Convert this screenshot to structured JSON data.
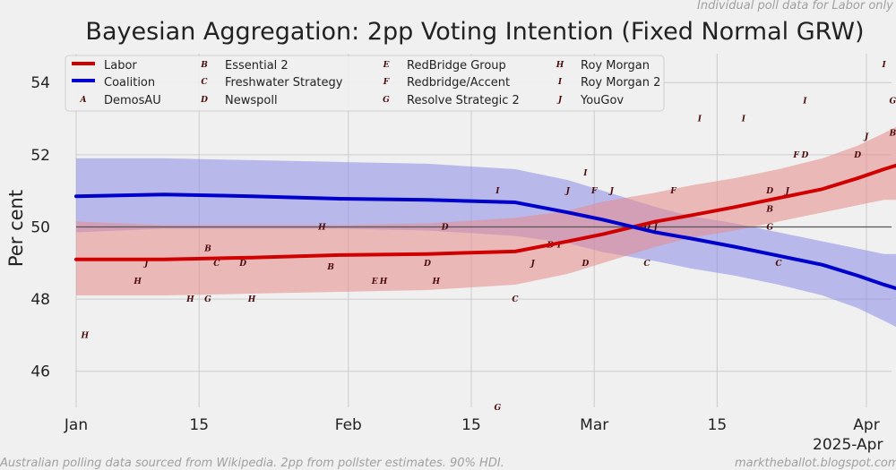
{
  "chart_data": {
    "type": "line",
    "title": "Bayesian Aggregation: 2pp Voting Intention (Fixed Normal GRW)",
    "top_note": "Individual poll data for Labor only",
    "ylabel": "Per cent",
    "xlabel": "2025-Apr",
    "footnote_left": "Australian polling data sourced from Wikipedia. 2pp from pollster estimates. 90% HDI.",
    "footnote_right": "marktheballot.blogspot.com",
    "reference_line": 50,
    "xlim": [
      0,
      96
    ],
    "ylim": [
      45,
      54.8
    ],
    "grid": true,
    "x_ticks": [
      {
        "day": 0,
        "label": "Jan"
      },
      {
        "day": 14,
        "label": "15"
      },
      {
        "day": 31,
        "label": "Feb"
      },
      {
        "day": 45,
        "label": "15"
      },
      {
        "day": 59,
        "label": "Mar"
      },
      {
        "day": 73,
        "label": "15"
      },
      {
        "day": 90,
        "label": "Apr"
      }
    ],
    "y_ticks": [
      46,
      48,
      50,
      52,
      54
    ],
    "colors": {
      "labor": "#d00000",
      "coalition": "#0000cc",
      "labor_band": "#e88a8a",
      "coalition_band": "#8a8ae8",
      "reference": "#555555"
    },
    "series": [
      {
        "name": "Labor",
        "end_label": "51.8",
        "x": [
          0,
          10,
          20,
          30,
          40,
          50,
          56,
          60,
          66,
          70,
          75,
          80,
          85,
          89,
          92,
          94
        ],
        "values": [
          49.1,
          49.1,
          49.15,
          49.22,
          49.25,
          49.32,
          49.6,
          49.8,
          50.15,
          50.32,
          50.55,
          50.8,
          51.05,
          51.35,
          51.6,
          51.75
        ],
        "band_lo": [
          48.1,
          48.1,
          48.15,
          48.2,
          48.25,
          48.4,
          48.7,
          49.0,
          49.45,
          49.7,
          49.9,
          50.15,
          50.4,
          50.6,
          50.75,
          50.75
        ],
        "band_hi": [
          50.15,
          50.05,
          50.05,
          50.05,
          50.1,
          50.25,
          50.45,
          50.7,
          50.95,
          51.15,
          51.35,
          51.6,
          51.9,
          52.25,
          52.6,
          52.85
        ]
      },
      {
        "name": "Coalition",
        "end_label": "48.2",
        "x": [
          0,
          10,
          20,
          30,
          40,
          50,
          56,
          60,
          66,
          70,
          75,
          80,
          85,
          89,
          92,
          94
        ],
        "values": [
          50.85,
          50.9,
          50.85,
          50.78,
          50.75,
          50.68,
          50.4,
          50.2,
          49.85,
          49.68,
          49.45,
          49.2,
          48.95,
          48.65,
          48.4,
          48.25
        ],
        "band_lo": [
          49.85,
          49.95,
          49.95,
          49.95,
          49.9,
          49.75,
          49.55,
          49.3,
          49.05,
          48.85,
          48.65,
          48.4,
          48.1,
          47.75,
          47.4,
          47.15
        ],
        "band_hi": [
          51.9,
          51.9,
          51.85,
          51.8,
          51.75,
          51.6,
          51.3,
          51.0,
          50.55,
          50.3,
          50.1,
          49.85,
          49.6,
          49.4,
          49.25,
          49.25
        ]
      }
    ],
    "legend": {
      "placement": "top-left",
      "line_entries": [
        {
          "label": "Labor",
          "color": "#d00000"
        },
        {
          "label": "Coalition",
          "color": "#0000cc"
        }
      ],
      "marker_entries": [
        {
          "marker": "A",
          "label": "DemosAU"
        },
        {
          "marker": "B",
          "label": "Essential 2"
        },
        {
          "marker": "C",
          "label": "Freshwater Strategy"
        },
        {
          "marker": "D",
          "label": "Newspoll"
        },
        {
          "marker": "E",
          "label": "RedBridge Group"
        },
        {
          "marker": "F",
          "label": "Redbridge/Accent"
        },
        {
          "marker": "G",
          "label": "Resolve Strategic 2"
        },
        {
          "marker": "H",
          "label": "Roy Morgan"
        },
        {
          "marker": "I",
          "label": "Roy Morgan 2"
        },
        {
          "marker": "J",
          "label": "YouGov"
        }
      ]
    },
    "polls": [
      {
        "m": "H",
        "x": 1,
        "y": 47.0
      },
      {
        "m": "H",
        "x": 7,
        "y": 48.5
      },
      {
        "m": "J",
        "x": 8,
        "y": 49.0
      },
      {
        "m": "H",
        "x": 13,
        "y": 48.0
      },
      {
        "m": "G",
        "x": 15,
        "y": 48.0
      },
      {
        "m": "B",
        "x": 15,
        "y": 49.4
      },
      {
        "m": "C",
        "x": 16,
        "y": 49.0
      },
      {
        "m": "D",
        "x": 19,
        "y": 49.0
      },
      {
        "m": "H",
        "x": 20,
        "y": 48.0
      },
      {
        "m": "H",
        "x": 28,
        "y": 50.0
      },
      {
        "m": "B",
        "x": 29,
        "y": 48.9
      },
      {
        "m": "E",
        "x": 34,
        "y": 48.5
      },
      {
        "m": "H",
        "x": 35,
        "y": 48.5
      },
      {
        "m": "D",
        "x": 40,
        "y": 49.0
      },
      {
        "m": "D",
        "x": 42,
        "y": 50.0
      },
      {
        "m": "H",
        "x": 41,
        "y": 48.5
      },
      {
        "m": "G",
        "x": 48,
        "y": 45.0
      },
      {
        "m": "I",
        "x": 48,
        "y": 51.0
      },
      {
        "m": "J",
        "x": 52,
        "y": 49.0
      },
      {
        "m": "C",
        "x": 50,
        "y": 48.0
      },
      {
        "m": "B",
        "x": 54,
        "y": 49.5
      },
      {
        "m": "I",
        "x": 55,
        "y": 49.5
      },
      {
        "m": "D",
        "x": 58,
        "y": 49.0
      },
      {
        "m": "J",
        "x": 56,
        "y": 51.0
      },
      {
        "m": "I",
        "x": 58,
        "y": 51.5
      },
      {
        "m": "F",
        "x": 59,
        "y": 51.0
      },
      {
        "m": "J",
        "x": 61,
        "y": 51.0
      },
      {
        "m": "C",
        "x": 65,
        "y": 49.0
      },
      {
        "m": "D",
        "x": 65,
        "y": 50.0
      },
      {
        "m": "J",
        "x": 66,
        "y": 50.0
      },
      {
        "m": "F",
        "x": 68,
        "y": 51.0
      },
      {
        "m": "I",
        "x": 71,
        "y": 53.0
      },
      {
        "m": "I",
        "x": 76,
        "y": 53.0
      },
      {
        "m": "C",
        "x": 80,
        "y": 49.0
      },
      {
        "m": "G",
        "x": 79,
        "y": 50.0
      },
      {
        "m": "B",
        "x": 79,
        "y": 50.5
      },
      {
        "m": "D",
        "x": 79,
        "y": 51.0
      },
      {
        "m": "J",
        "x": 81,
        "y": 51.0
      },
      {
        "m": "F",
        "x": 82,
        "y": 52.0
      },
      {
        "m": "D",
        "x": 83,
        "y": 52.0
      },
      {
        "m": "I",
        "x": 83,
        "y": 53.5
      },
      {
        "m": "D",
        "x": 89,
        "y": 52.0
      },
      {
        "m": "J",
        "x": 90,
        "y": 52.5
      },
      {
        "m": "I",
        "x": 92,
        "y": 54.5
      },
      {
        "m": "G",
        "x": 93,
        "y": 53.5
      },
      {
        "m": "B",
        "x": 93,
        "y": 52.6
      }
    ]
  }
}
